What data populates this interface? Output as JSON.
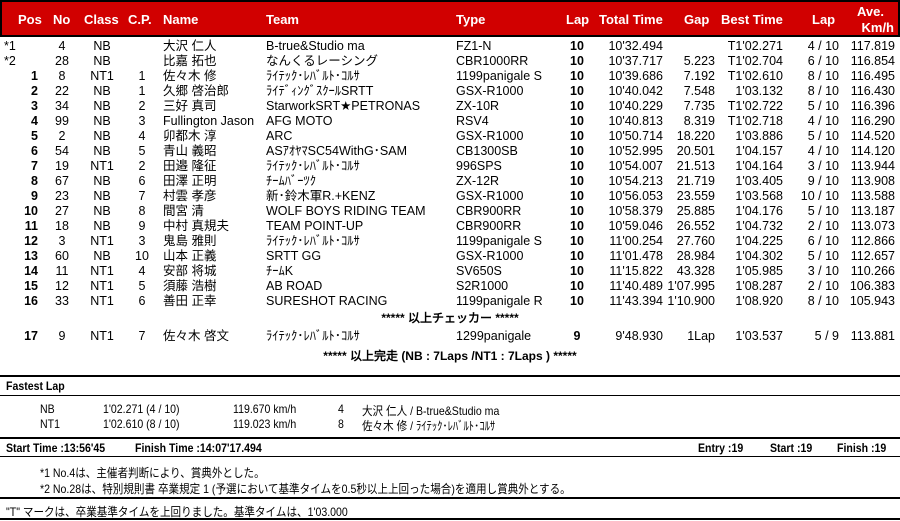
{
  "header": {
    "pos": "Pos",
    "no": "No",
    "class": "Class",
    "cp": "C.P.",
    "name": "Name",
    "team": "Team",
    "type": "Type",
    "lap": "Lap",
    "total": "Total Time",
    "gap": "Gap",
    "best": "Best Time",
    "bestlap": "Lap",
    "ave1": "Ave.",
    "ave2": "Km/h"
  },
  "rows": [
    [
      "*1",
      "4",
      "NB",
      "",
      "大沢 仁人",
      "B-true&Studio ma",
      "FZ1-N",
      "10",
      "10'32.494",
      "",
      "T1'02.271",
      "4 / 10",
      "117.819"
    ],
    [
      "*2",
      "28",
      "NB",
      "",
      "比嘉 拓也",
      "なんくるレーシング",
      "CBR1000RR",
      "10",
      "10'37.717",
      "5.223",
      "T1'02.704",
      "6 / 10",
      "116.854"
    ],
    [
      "1",
      "8",
      "NT1",
      "1",
      "佐々木 修",
      "ﾗｲﾃｯｸ･ﾚﾊﾞﾙﾄ･ｺﾙｻ",
      "1199panigale S",
      "10",
      "10'39.686",
      "7.192",
      "T1'02.610",
      "8 / 10",
      "116.495"
    ],
    [
      "2",
      "22",
      "NB",
      "1",
      "久郷 啓治郎",
      "ﾗｲﾃﾞｨﾝｸﾞｽｸｰﾙSRTT",
      "GSX-R1000",
      "10",
      "10'40.042",
      "7.548",
      "1'03.132",
      "8 / 10",
      "116.430"
    ],
    [
      "3",
      "34",
      "NB",
      "2",
      "三好 真司",
      "StarworkSRT★PETRONAS",
      "ZX-10R",
      "10",
      "10'40.229",
      "7.735",
      "T1'02.722",
      "5 / 10",
      "116.396"
    ],
    [
      "4",
      "99",
      "NB",
      "3",
      "Fullington Jason",
      "AFG MOTO",
      "RSV4",
      "10",
      "10'40.813",
      "8.319",
      "T1'02.718",
      "4 / 10",
      "116.290"
    ],
    [
      "5",
      "2",
      "NB",
      "4",
      "卯都木 淳",
      "ARC",
      "GSX-R1000",
      "10",
      "10'50.714",
      "18.220",
      "1'03.886",
      "5 / 10",
      "114.520"
    ],
    [
      "6",
      "54",
      "NB",
      "5",
      "青山 義昭",
      "ASｱｵﾔﾏSC54WithG･SAM",
      "CB1300SB",
      "10",
      "10'52.995",
      "20.501",
      "1'04.157",
      "4 / 10",
      "114.120"
    ],
    [
      "7",
      "19",
      "NT1",
      "2",
      "田邉 隆征",
      "ﾗｲﾃｯｸ･ﾚﾊﾞﾙﾄ･ｺﾙｻ",
      "996SPS",
      "10",
      "10'54.007",
      "21.513",
      "1'04.164",
      "3 / 10",
      "113.944"
    ],
    [
      "8",
      "67",
      "NB",
      "6",
      "田澤 正明",
      "ﾁｰﾑﾊﾞｰﾂｸ",
      "ZX-12R",
      "10",
      "10'54.213",
      "21.719",
      "1'03.405",
      "9 / 10",
      "113.908"
    ],
    [
      "9",
      "23",
      "NB",
      "7",
      "村雲 孝彦",
      "新･鈴木軍R.+KENZ",
      "GSX-R1000",
      "10",
      "10'56.053",
      "23.559",
      "1'03.568",
      "10 / 10",
      "113.588"
    ],
    [
      "10",
      "27",
      "NB",
      "8",
      "間宮 清",
      "WOLF  BOYS  RIDING  TEAM",
      "CBR900RR",
      "10",
      "10'58.379",
      "25.885",
      "1'04.176",
      "5 / 10",
      "113.187"
    ],
    [
      "11",
      "18",
      "NB",
      "9",
      "中村 真規夫",
      "TEAM POINT-UP",
      "CBR900RR",
      "10",
      "10'59.046",
      "26.552",
      "1'04.732",
      "2 / 10",
      "113.073"
    ],
    [
      "12",
      "3",
      "NT1",
      "3",
      "鬼島 雅則",
      "ﾗｲﾃｯｸ･ﾚﾊﾞﾙﾄ･ｺﾙｻ",
      "1199panigale S",
      "10",
      "11'00.254",
      "27.760",
      "1'04.225",
      "6 / 10",
      "112.866"
    ],
    [
      "13",
      "60",
      "NB",
      "10",
      "山本 正義",
      "SRTT GG",
      "GSX-R1000",
      "10",
      "11'01.478",
      "28.984",
      "1'04.302",
      "5 / 10",
      "112.657"
    ],
    [
      "14",
      "11",
      "NT1",
      "4",
      "安部 将城",
      "ﾁｰﾑK",
      "SV650S",
      "10",
      "11'15.822",
      "43.328",
      "1'05.985",
      "3 / 10",
      "110.266"
    ],
    [
      "15",
      "12",
      "NT1",
      "5",
      "須藤 浩樹",
      "AB ROAD",
      "S2R1000",
      "10",
      "11'40.489",
      "1'07.995",
      "1'08.287",
      "2 / 10",
      "106.383"
    ],
    [
      "16",
      "33",
      "NT1",
      "6",
      "善田 正幸",
      "SURESHOT RACING",
      "1199panigale R",
      "10",
      "11'43.394",
      "1'10.900",
      "1'08.920",
      "8 / 10",
      "105.943"
    ]
  ],
  "checker": "***** 以上チェッカー *****",
  "row17": [
    "17",
    "9",
    "NT1",
    "7",
    "佐々木 啓文",
    "ﾗｲﾃｯｸ･ﾚﾊﾞﾙﾄ･ｺﾙｻ",
    "1299panigale",
    "9",
    "9'48.930",
    "1Lap",
    "1'03.537",
    "5 / 9",
    "113.881"
  ],
  "finished": "***** 以上完走 (NB : 7Laps /NT1 : 7Laps ) *****",
  "fastest": {
    "title": "Fastest Lap",
    "rows": [
      {
        "cls": "NB",
        "time": "1'02.271 (4 / 10)",
        "speed": "119.670 km/h",
        "no": "4",
        "who": "大沢 仁人 / B-true&Studio ma"
      },
      {
        "cls": "NT1",
        "time": "1'02.610 (8 / 10)",
        "speed": "119.023 km/h",
        "no": "8",
        "who": "佐々木 修 / ﾗｲﾃｯｸ･ﾚﾊﾞﾙﾄ･ｺﾙｻ"
      }
    ]
  },
  "times": {
    "start": "Start Time :13:56'45",
    "finish": "Finish Time :14:07'17.494",
    "entry": "Entry :19",
    "started": "Start :19",
    "finished": "Finish :19"
  },
  "notes": [
    "*1 No.4は、主催者判断により、賞典外とした。",
    "*2 No.28は、特別規則書 卒業規定 1 (予選において基準タイムを0.5秒以上上回った場合)を適用し賞典外とする。"
  ],
  "tmark": "\"T\" マークは、卒業基準タイムを上回りました。基準タイムは、1'03.000",
  "colors": {
    "header_bg": "#d10000",
    "header_text": "#ffffff"
  }
}
